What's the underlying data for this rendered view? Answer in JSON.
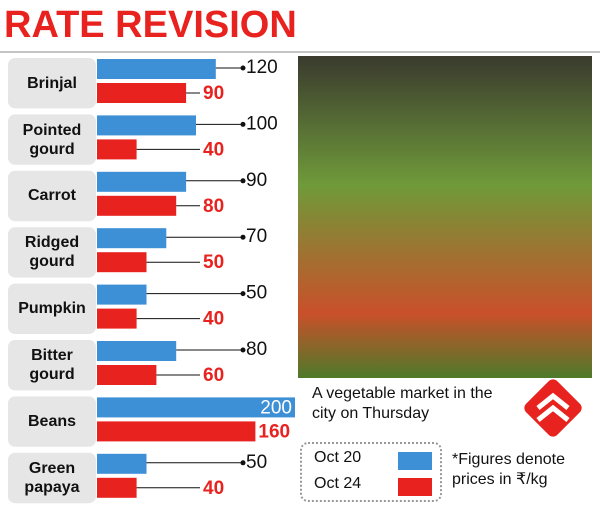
{
  "chart_data": {
    "type": "bar",
    "orientation": "horizontal",
    "title": "RATE REVISION",
    "categories": [
      "Brinjal",
      "Pointed gourd",
      "Carrot",
      "Ridged gourd",
      "Pumpkin",
      "Bitter gourd",
      "Beans",
      "Green papaya"
    ],
    "series": [
      {
        "name": "Oct 20",
        "color": "#3d8fd6",
        "values": [
          120,
          100,
          90,
          70,
          50,
          80,
          200,
          50
        ]
      },
      {
        "name": "Oct 24",
        "color": "#e8231f",
        "values": [
          90,
          40,
          80,
          50,
          40,
          60,
          160,
          40
        ]
      }
    ],
    "xlim": [
      0,
      200
    ]
  },
  "photo": {
    "caption": "A vegetable market in the city on Thursday"
  },
  "note": "*Figures denote prices in ₹/kg"
}
